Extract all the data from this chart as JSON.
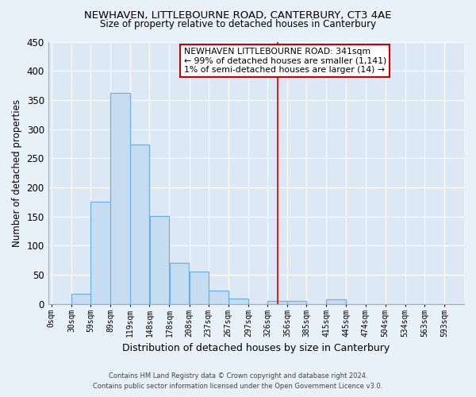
{
  "title": "NEWHAVEN, LITTLEBOURNE ROAD, CANTERBURY, CT3 4AE",
  "subtitle": "Size of property relative to detached houses in Canterbury",
  "xlabel": "Distribution of detached houses by size in Canterbury",
  "ylabel": "Number of detached properties",
  "bar_left_edges": [
    0,
    30,
    59,
    89,
    119,
    148,
    178,
    208,
    237,
    267,
    297,
    326,
    356,
    385,
    415,
    445,
    474,
    504,
    534,
    563
  ],
  "bar_widths": [
    30,
    29,
    30,
    30,
    29,
    30,
    30,
    29,
    30,
    30,
    29,
    30,
    29,
    30,
    30,
    29,
    30,
    30,
    29,
    30
  ],
  "bar_heights": [
    0,
    18,
    176,
    362,
    274,
    151,
    70,
    55,
    23,
    10,
    0,
    5,
    5,
    0,
    8,
    0,
    0,
    0,
    0,
    0
  ],
  "bar_color": "#c6dcf0",
  "bar_edge_color": "#6aaee8",
  "tick_labels": [
    "0sqm",
    "30sqm",
    "59sqm",
    "89sqm",
    "119sqm",
    "148sqm",
    "178sqm",
    "208sqm",
    "237sqm",
    "267sqm",
    "297sqm",
    "326sqm",
    "356sqm",
    "385sqm",
    "415sqm",
    "445sqm",
    "474sqm",
    "504sqm",
    "534sqm",
    "563sqm",
    "593sqm"
  ],
  "tick_positions": [
    0,
    30,
    59,
    89,
    119,
    148,
    178,
    208,
    237,
    267,
    297,
    326,
    356,
    385,
    415,
    445,
    474,
    504,
    534,
    563,
    593
  ],
  "ylim": [
    0,
    450
  ],
  "xlim": [
    -5,
    623
  ],
  "vline_x": 341,
  "vline_color": "#cc0000",
  "annotation_text_line1": "NEWHAVEN LITTLEBOURNE ROAD: 341sqm",
  "annotation_text_line2": "← 99% of detached houses are smaller (1,141)",
  "annotation_text_line3": "1% of semi-detached houses are larger (14) →",
  "footer_line1": "Contains HM Land Registry data © Crown copyright and database right 2024.",
  "footer_line2": "Contains public sector information licensed under the Open Government Licence v3.0.",
  "bg_color": "#e8f0f8",
  "plot_bg_color": "#dce8f4",
  "grid_color": "#ffffff"
}
